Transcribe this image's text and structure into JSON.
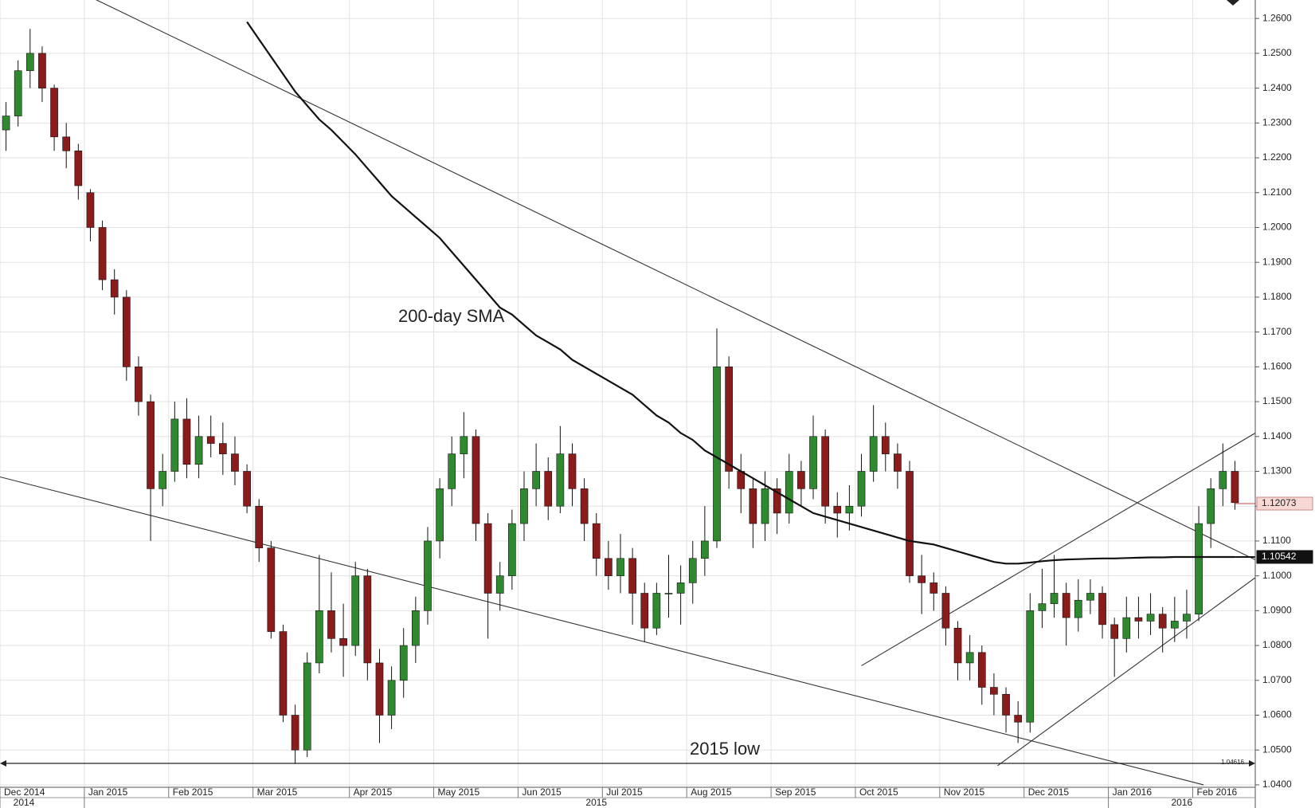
{
  "chart_data": {
    "type": "candlestick",
    "categories": [
      "Dec 2014",
      null,
      null,
      null,
      null,
      null,
      null,
      "Jan 2015",
      null,
      null,
      null,
      null,
      null,
      null,
      "Feb 2015",
      null,
      null,
      null,
      null,
      null,
      null,
      "Mar 2015",
      null,
      null,
      null,
      null,
      null,
      null,
      null,
      "Apr 2015",
      null,
      null,
      null,
      null,
      null,
      null,
      "May 2015",
      null,
      null,
      null,
      null,
      null,
      null,
      "Jun 2015",
      null,
      null,
      null,
      null,
      null,
      null,
      "Jul 2015",
      null,
      null,
      null,
      null,
      null,
      null,
      "Aug 2015",
      null,
      null,
      null,
      null,
      null,
      null,
      "Sep 2015",
      null,
      null,
      null,
      null,
      null,
      null,
      "Oct 2015",
      null,
      null,
      null,
      null,
      null,
      null,
      "Nov 2015",
      null,
      null,
      null,
      null,
      null,
      null,
      "Dec 2015",
      null,
      null,
      null,
      null,
      null,
      null,
      "Jan 2016",
      null,
      null,
      null,
      null,
      null,
      null,
      "Feb 2016",
      null,
      null,
      null
    ],
    "years": [
      "2014",
      null,
      null,
      null,
      null,
      null,
      null,
      "2015",
      null,
      null,
      null,
      null,
      null,
      null,
      null,
      null,
      null,
      null,
      null,
      null,
      null,
      null,
      null,
      null,
      null,
      null,
      null,
      null,
      null,
      null,
      null,
      null,
      null,
      null,
      null,
      null,
      null,
      null,
      null,
      null,
      null,
      null,
      null,
      null,
      null,
      null,
      null,
      null,
      null,
      null,
      null,
      null,
      null,
      null,
      null,
      null,
      null,
      null,
      null,
      null,
      null,
      null,
      null,
      null,
      null,
      null,
      null,
      null,
      null,
      null,
      null,
      null,
      null,
      null,
      null,
      null,
      null,
      null,
      null,
      null,
      null,
      null,
      null,
      null,
      null,
      null,
      null,
      null,
      null,
      null,
      null,
      null,
      "2016",
      null,
      null,
      null,
      null,
      null,
      null,
      null,
      null,
      null,
      null
    ],
    "candles": [
      [
        1.228,
        1.236,
        1.222,
        1.232
      ],
      [
        1.232,
        1.248,
        1.229,
        1.245
      ],
      [
        1.245,
        1.257,
        1.24,
        1.25
      ],
      [
        1.25,
        1.252,
        1.236,
        1.24
      ],
      [
        1.24,
        1.241,
        1.222,
        1.226
      ],
      [
        1.226,
        1.23,
        1.217,
        1.222
      ],
      [
        1.222,
        1.224,
        1.208,
        1.212
      ],
      [
        1.21,
        1.211,
        1.196,
        1.2
      ],
      [
        1.2,
        1.202,
        1.182,
        1.185
      ],
      [
        1.185,
        1.188,
        1.175,
        1.18
      ],
      [
        1.18,
        1.182,
        1.156,
        1.16
      ],
      [
        1.16,
        1.163,
        1.146,
        1.15
      ],
      [
        1.15,
        1.152,
        1.11,
        1.125
      ],
      [
        1.125,
        1.135,
        1.12,
        1.13
      ],
      [
        1.13,
        1.15,
        1.127,
        1.145
      ],
      [
        1.145,
        1.151,
        1.128,
        1.132
      ],
      [
        1.132,
        1.146,
        1.128,
        1.14
      ],
      [
        1.14,
        1.146,
        1.134,
        1.138
      ],
      [
        1.138,
        1.144,
        1.129,
        1.135
      ],
      [
        1.135,
        1.14,
        1.126,
        1.13
      ],
      [
        1.13,
        1.132,
        1.118,
        1.12
      ],
      [
        1.12,
        1.122,
        1.104,
        1.108
      ],
      [
        1.108,
        1.11,
        1.082,
        1.084
      ],
      [
        1.084,
        1.086,
        1.058,
        1.06
      ],
      [
        1.06,
        1.063,
        1.046,
        1.05
      ],
      [
        1.05,
        1.078,
        1.048,
        1.075
      ],
      [
        1.075,
        1.106,
        1.072,
        1.09
      ],
      [
        1.09,
        1.101,
        1.078,
        1.082
      ],
      [
        1.082,
        1.092,
        1.071,
        1.08
      ],
      [
        1.08,
        1.104,
        1.077,
        1.1
      ],
      [
        1.1,
        1.102,
        1.07,
        1.075
      ],
      [
        1.075,
        1.079,
        1.052,
        1.06
      ],
      [
        1.06,
        1.074,
        1.056,
        1.07
      ],
      [
        1.07,
        1.085,
        1.065,
        1.08
      ],
      [
        1.08,
        1.094,
        1.075,
        1.09
      ],
      [
        1.09,
        1.114,
        1.086,
        1.11
      ],
      [
        1.11,
        1.128,
        1.105,
        1.125
      ],
      [
        1.125,
        1.14,
        1.12,
        1.135
      ],
      [
        1.135,
        1.147,
        1.128,
        1.14
      ],
      [
        1.14,
        1.142,
        1.11,
        1.115
      ],
      [
        1.115,
        1.118,
        1.082,
        1.095
      ],
      [
        1.095,
        1.104,
        1.09,
        1.1
      ],
      [
        1.1,
        1.119,
        1.096,
        1.115
      ],
      [
        1.115,
        1.13,
        1.11,
        1.125
      ],
      [
        1.125,
        1.138,
        1.12,
        1.13
      ],
      [
        1.13,
        1.134,
        1.116,
        1.12
      ],
      [
        1.12,
        1.143,
        1.118,
        1.135
      ],
      [
        1.135,
        1.138,
        1.12,
        1.125
      ],
      [
        1.125,
        1.128,
        1.11,
        1.115
      ],
      [
        1.115,
        1.118,
        1.1,
        1.105
      ],
      [
        1.105,
        1.11,
        1.096,
        1.1
      ],
      [
        1.1,
        1.112,
        1.095,
        1.105
      ],
      [
        1.105,
        1.108,
        1.086,
        1.095
      ],
      [
        1.095,
        1.098,
        1.081,
        1.085
      ],
      [
        1.085,
        1.098,
        1.083,
        1.095
      ],
      [
        1.095,
        1.106,
        1.088,
        1.095
      ],
      [
        1.095,
        1.103,
        1.086,
        1.098
      ],
      [
        1.098,
        1.11,
        1.092,
        1.105
      ],
      [
        1.105,
        1.12,
        1.1,
        1.11
      ],
      [
        1.11,
        1.171,
        1.108,
        1.16
      ],
      [
        1.16,
        1.163,
        1.125,
        1.13
      ],
      [
        1.13,
        1.135,
        1.118,
        1.125
      ],
      [
        1.125,
        1.128,
        1.108,
        1.115
      ],
      [
        1.115,
        1.13,
        1.11,
        1.125
      ],
      [
        1.125,
        1.128,
        1.112,
        1.118
      ],
      [
        1.118,
        1.135,
        1.115,
        1.13
      ],
      [
        1.13,
        1.133,
        1.12,
        1.125
      ],
      [
        1.125,
        1.146,
        1.122,
        1.14
      ],
      [
        1.14,
        1.142,
        1.115,
        1.12
      ],
      [
        1.12,
        1.124,
        1.111,
        1.118
      ],
      [
        1.118,
        1.126,
        1.113,
        1.12
      ],
      [
        1.12,
        1.135,
        1.117,
        1.13
      ],
      [
        1.13,
        1.149,
        1.127,
        1.14
      ],
      [
        1.14,
        1.144,
        1.13,
        1.135
      ],
      [
        1.135,
        1.138,
        1.125,
        1.13
      ],
      [
        1.13,
        1.133,
        1.098,
        1.1
      ],
      [
        1.1,
        1.106,
        1.089,
        1.098
      ],
      [
        1.098,
        1.101,
        1.09,
        1.095
      ],
      [
        1.095,
        1.097,
        1.08,
        1.085
      ],
      [
        1.085,
        1.087,
        1.07,
        1.075
      ],
      [
        1.075,
        1.083,
        1.07,
        1.078
      ],
      [
        1.078,
        1.08,
        1.063,
        1.068
      ],
      [
        1.068,
        1.072,
        1.06,
        1.066
      ],
      [
        1.066,
        1.068,
        1.055,
        1.06
      ],
      [
        1.06,
        1.064,
        1.052,
        1.058
      ],
      [
        1.058,
        1.095,
        1.055,
        1.09
      ],
      [
        1.09,
        1.102,
        1.085,
        1.092
      ],
      [
        1.092,
        1.106,
        1.088,
        1.095
      ],
      [
        1.095,
        1.098,
        1.08,
        1.088
      ],
      [
        1.088,
        1.099,
        1.084,
        1.093
      ],
      [
        1.093,
        1.099,
        1.089,
        1.095
      ],
      [
        1.095,
        1.097,
        1.082,
        1.086
      ],
      [
        1.086,
        1.088,
        1.071,
        1.082
      ],
      [
        1.082,
        1.094,
        1.078,
        1.088
      ],
      [
        1.088,
        1.094,
        1.082,
        1.087
      ],
      [
        1.087,
        1.095,
        1.083,
        1.089
      ],
      [
        1.089,
        1.091,
        1.078,
        1.085
      ],
      [
        1.085,
        1.094,
        1.081,
        1.087
      ],
      [
        1.087,
        1.096,
        1.082,
        1.089
      ],
      [
        1.089,
        1.12,
        1.087,
        1.115
      ],
      [
        1.115,
        1.128,
        1.108,
        1.125
      ],
      [
        1.125,
        1.138,
        1.12,
        1.13
      ],
      [
        1.13,
        1.133,
        1.119,
        1.121
      ]
    ],
    "up_color": "#2f8a2f",
    "down_color": "#8b1c1c",
    "sma": {
      "name": "200-day SMA",
      "color": "#111111",
      "last": 1.10542,
      "values": [
        null,
        null,
        null,
        null,
        null,
        null,
        null,
        null,
        null,
        null,
        null,
        null,
        null,
        null,
        null,
        null,
        null,
        null,
        null,
        null,
        1.259,
        1.254,
        1.249,
        1.244,
        1.239,
        1.235,
        1.231,
        1.228,
        1.2245,
        1.221,
        1.217,
        1.213,
        1.209,
        1.206,
        1.203,
        1.2,
        1.197,
        1.193,
        1.189,
        1.185,
        1.181,
        1.177,
        1.175,
        1.172,
        1.169,
        1.167,
        1.165,
        1.162,
        1.16,
        1.158,
        1.156,
        1.154,
        1.152,
        1.149,
        1.146,
        1.144,
        1.141,
        1.139,
        1.136,
        1.134,
        1.132,
        1.13,
        1.128,
        1.126,
        1.124,
        1.122,
        1.12,
        1.118,
        1.117,
        1.116,
        1.115,
        1.114,
        1.113,
        1.112,
        1.111,
        1.11,
        1.1095,
        1.109,
        1.108,
        1.107,
        1.106,
        1.105,
        1.104,
        1.1035,
        1.1035,
        1.1038,
        1.1042,
        1.1045,
        1.1047,
        1.1048,
        1.1049,
        1.105,
        1.105,
        1.1051,
        1.1052,
        1.1053,
        1.1053,
        1.1054,
        1.1054,
        1.1054,
        1.1054,
        1.1054,
        1.1054
      ]
    },
    "trendlines": [
      {
        "from": [
          -0.5,
          1.2787
        ],
        "to": [
          103.7,
          1.1046
        ]
      },
      {
        "from": [
          -0.5,
          1.1284
        ],
        "to": [
          99.4,
          1.04
        ]
      },
      {
        "from": [
          71,
          1.0742
        ],
        "to": [
          103.7,
          1.141
        ]
      },
      {
        "from": [
          82.3,
          1.0455
        ],
        "to": [
          103.7,
          1.0995
        ]
      }
    ],
    "low": {
      "name": "2015 low",
      "value": 1.04616
    },
    "last_price": 1.12073,
    "ylim": [
      1.0393,
      1.2653
    ],
    "yticks": [
      {
        "value": 1.04,
        "label": "1.0400"
      },
      {
        "value": 1.05,
        "label": "1.0500"
      },
      {
        "value": 1.06,
        "label": "1.0600"
      },
      {
        "value": 1.07,
        "label": "1.0700"
      },
      {
        "value": 1.08,
        "label": "1.0800"
      },
      {
        "value": 1.09,
        "label": "1.0900"
      },
      {
        "value": 1.1,
        "label": "1.1000"
      },
      {
        "value": 1.11,
        "label": "1.1100"
      },
      {
        "value": 1.12,
        "label": "1.1200"
      },
      {
        "value": 1.13,
        "label": "1.1300"
      },
      {
        "value": 1.14,
        "label": "1.1400"
      },
      {
        "value": 1.15,
        "label": "1.1500"
      },
      {
        "value": 1.16,
        "label": "1.1600"
      },
      {
        "value": 1.17,
        "label": "1.1700"
      },
      {
        "value": 1.18,
        "label": "1.1800"
      },
      {
        "value": 1.19,
        "label": "1.1900"
      },
      {
        "value": 1.2,
        "label": "1.2000"
      },
      {
        "value": 1.21,
        "label": "1.2100"
      },
      {
        "value": 1.22,
        "label": "1.2200"
      },
      {
        "value": 1.23,
        "label": "1.2300"
      },
      {
        "value": 1.24,
        "label": "1.2400"
      },
      {
        "value": 1.25,
        "label": "1.2500"
      },
      {
        "value": 1.26,
        "label": "1.2600"
      }
    ],
    "grid": true
  }
}
